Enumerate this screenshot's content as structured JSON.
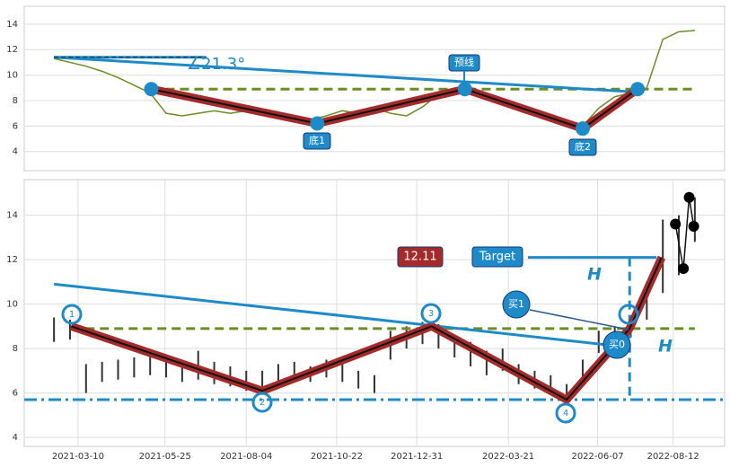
{
  "chart_data": [
    {
      "type": "line",
      "color": "#6b8e23",
      "xlim": [
        "2021-01-22",
        "2022-09-26"
      ],
      "ylim": [
        2.5,
        15.4
      ],
      "yticks": [
        4,
        6,
        8,
        10,
        12,
        14
      ],
      "grid": true,
      "x": [
        "2021-02-17",
        "2021-03-03",
        "2021-03-17",
        "2021-03-31",
        "2021-04-14",
        "2021-04-28",
        "2021-05-12",
        "2021-05-26",
        "2021-06-09",
        "2021-06-23",
        "2021-07-07",
        "2021-07-21",
        "2021-08-04",
        "2021-08-18",
        "2021-09-01",
        "2021-09-15",
        "2021-09-29",
        "2021-10-13",
        "2021-10-27",
        "2021-11-10",
        "2021-11-24",
        "2021-12-08",
        "2021-12-22",
        "2022-01-05",
        "2022-01-19",
        "2022-02-02",
        "2022-02-16",
        "2022-03-02",
        "2022-03-16",
        "2022-03-30",
        "2022-04-13",
        "2022-04-27",
        "2022-05-11",
        "2022-05-25",
        "2022-06-08",
        "2022-06-22",
        "2022-07-06",
        "2022-07-20",
        "2022-08-03",
        "2022-08-17",
        "2022-08-31"
      ],
      "values": [
        11.3,
        11.0,
        10.7,
        10.3,
        9.8,
        9.2,
        8.6,
        7.0,
        6.8,
        7.0,
        7.2,
        7.0,
        7.2,
        6.9,
        7.0,
        6.8,
        6.5,
        6.8,
        7.2,
        7.0,
        7.4,
        7.0,
        6.8,
        7.5,
        8.5,
        8.8,
        9.0,
        8.3,
        7.8,
        7.2,
        6.8,
        6.5,
        6.3,
        6.0,
        7.4,
        8.3,
        8.6,
        9.0,
        12.8,
        13.4,
        13.5
      ],
      "zigzag": {
        "color": "#a52a2a",
        "x": [
          "2021-05-13",
          "2021-10-05",
          "2022-02-11",
          "2022-05-25",
          "2022-07-12"
        ],
        "values": [
          8.9,
          6.2,
          8.9,
          5.8,
          8.9
        ]
      },
      "level": 8.9,
      "trend": {
        "x": [
          "2021-02-17",
          "2022-07-05"
        ],
        "values": [
          11.4,
          8.7
        ]
      },
      "angle_base": {
        "x": [
          "2021-02-17",
          "2021-06-30"
        ],
        "values": [
          11.4,
          11.4
        ]
      },
      "angle_label": "∠21.3°",
      "labels": [
        "预线",
        "底1",
        "底2"
      ]
    },
    {
      "type": "range",
      "color": "#333333",
      "xlim": [
        "2021-01-22",
        "2022-09-26"
      ],
      "ylim": [
        3.6,
        15.6
      ],
      "yticks": [
        4,
        6,
        8,
        10,
        12,
        14
      ],
      "grid": true,
      "xticks": [
        "2021-03-10",
        "2021-05-25",
        "2021-08-04",
        "2021-10-22",
        "2021-12-31",
        "2022-03-21",
        "2022-06-07",
        "2022-08-12"
      ],
      "x": [
        "2021-02-17",
        "2021-03-03",
        "2021-03-17",
        "2021-03-31",
        "2021-04-14",
        "2021-04-28",
        "2021-05-12",
        "2021-05-26",
        "2021-06-09",
        "2021-06-23",
        "2021-07-07",
        "2021-07-21",
        "2021-08-04",
        "2021-08-18",
        "2021-09-01",
        "2021-09-15",
        "2021-09-29",
        "2021-10-13",
        "2021-10-27",
        "2021-11-10",
        "2021-11-24",
        "2021-12-08",
        "2021-12-22",
        "2022-01-05",
        "2022-01-19",
        "2022-02-02",
        "2022-02-16",
        "2022-03-02",
        "2022-03-16",
        "2022-03-30",
        "2022-04-13",
        "2022-04-27",
        "2022-05-11",
        "2022-05-25",
        "2022-06-08",
        "2022-06-22",
        "2022-07-06",
        "2022-07-20",
        "2022-08-03",
        "2022-08-17",
        "2022-08-31"
      ],
      "high": [
        9.4,
        9.3,
        7.3,
        7.4,
        7.5,
        7.6,
        7.8,
        7.6,
        7.5,
        7.9,
        7.4,
        7.2,
        7.0,
        7.0,
        7.3,
        7.4,
        7.2,
        7.5,
        7.4,
        7.0,
        6.8,
        8.8,
        9.0,
        9.2,
        9.1,
        8.6,
        8.3,
        7.9,
        8.0,
        7.3,
        7.0,
        6.8,
        6.4,
        7.5,
        8.8,
        9.0,
        9.5,
        11.0,
        13.8,
        14.0,
        14.8
      ],
      "low": [
        8.3,
        8.4,
        6.0,
        6.5,
        6.6,
        6.7,
        6.8,
        6.7,
        6.5,
        6.6,
        6.4,
        6.3,
        6.1,
        6.3,
        6.5,
        6.6,
        6.5,
        6.7,
        6.5,
        6.2,
        6.0,
        7.5,
        8.0,
        8.2,
        8.0,
        7.6,
        7.2,
        6.8,
        7.0,
        6.4,
        6.2,
        6.0,
        5.7,
        6.5,
        7.8,
        8.2,
        8.5,
        9.3,
        10.5,
        11.3,
        12.8
      ],
      "markers": {
        "x": [
          "2022-08-14",
          "2022-08-21",
          "2022-08-26",
          "2022-08-30"
        ],
        "values": [
          13.6,
          11.6,
          14.8,
          13.5
        ]
      },
      "zigzag": {
        "color": "#a52a2a",
        "x": [
          "2021-03-04",
          "2021-08-18",
          "2022-01-13",
          "2022-05-11",
          "2022-07-05",
          "2022-08-02"
        ],
        "values": [
          9.0,
          6.1,
          9.0,
          5.7,
          8.9,
          12.1
        ]
      },
      "level": 8.9,
      "support": 5.7,
      "target": 12.1,
      "trend": {
        "x": [
          "2021-02-17",
          "2022-06-27"
        ],
        "values": [
          10.9,
          8.1
        ]
      },
      "points": [
        "1",
        "2",
        "3",
        "4"
      ],
      "labels": [
        "12.11",
        "Target",
        "H",
        "H",
        "买1",
        "买0"
      ]
    }
  ]
}
